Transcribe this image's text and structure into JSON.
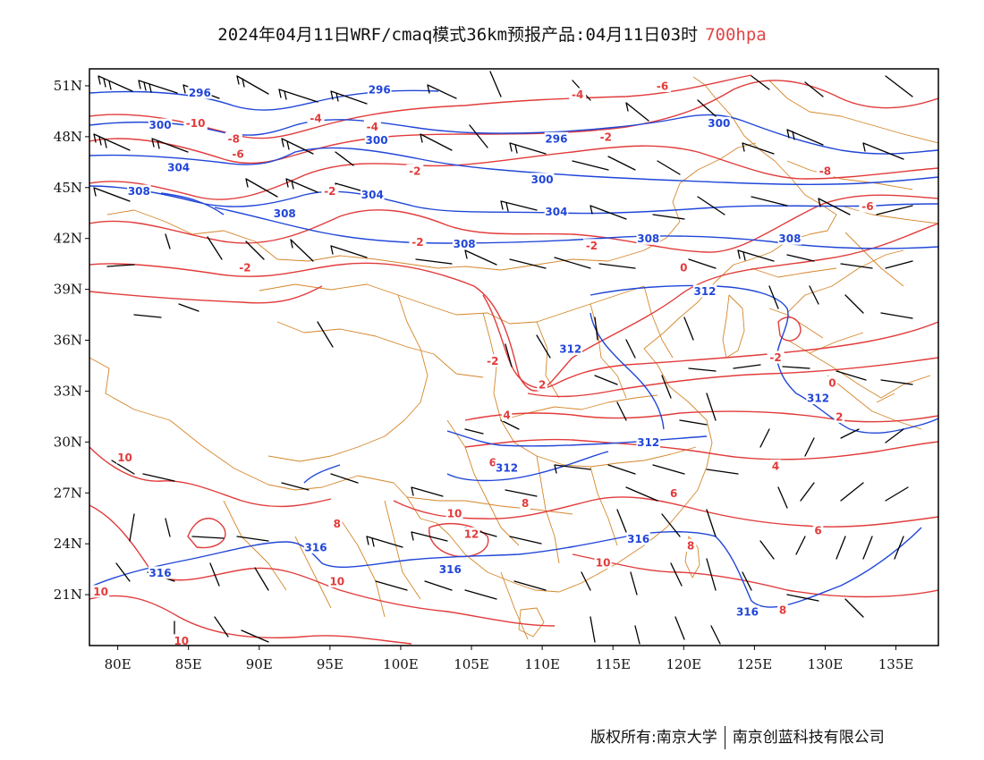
{
  "title": {
    "main": "2024年04月11日WRF/cmaq模式36km预报产品:04月11日03时",
    "level": "700hpa"
  },
  "colors": {
    "temperature": "#e23b3b",
    "height": "#2046d8",
    "borders": "#d4862a",
    "wind": "#000000"
  },
  "map": {
    "lon_range": [
      78,
      138
    ],
    "lat_range": [
      18,
      52
    ],
    "lat_ticks": [
      "21N",
      "24N",
      "27N",
      "30N",
      "33N",
      "36N",
      "39N",
      "42N",
      "45N",
      "48N",
      "51N"
    ],
    "lon_ticks": [
      "80E",
      "85E",
      "90E",
      "95E",
      "100E",
      "105E",
      "110E",
      "115E",
      "120E",
      "125E",
      "130E",
      "135E"
    ]
  },
  "temperature_labels": [
    {
      "text": "-10",
      "lon": 85.5,
      "lat": 48.8
    },
    {
      "text": "-8",
      "lon": 88.2,
      "lat": 47.9
    },
    {
      "text": "-6",
      "lon": 88.5,
      "lat": 47.0
    },
    {
      "text": "-4",
      "lon": 94.0,
      "lat": 49.1
    },
    {
      "text": "-4",
      "lon": 98.0,
      "lat": 48.6
    },
    {
      "text": "-4",
      "lon": 112.5,
      "lat": 50.5
    },
    {
      "text": "-6",
      "lon": 118.5,
      "lat": 51.0
    },
    {
      "text": "-2",
      "lon": 95.0,
      "lat": 44.8
    },
    {
      "text": "-2",
      "lon": 101.0,
      "lat": 46.0
    },
    {
      "text": "-2",
      "lon": 114.5,
      "lat": 48.0
    },
    {
      "text": "-2",
      "lon": 101.2,
      "lat": 41.8
    },
    {
      "text": "-2",
      "lon": 89.0,
      "lat": 40.3
    },
    {
      "text": "-2",
      "lon": 113.5,
      "lat": 41.6
    },
    {
      "text": "-8",
      "lon": 130.0,
      "lat": 46.0
    },
    {
      "text": "-6",
      "lon": 133.0,
      "lat": 43.9
    },
    {
      "text": "0",
      "lon": 120.0,
      "lat": 40.3
    },
    {
      "text": "-2",
      "lon": 106.5,
      "lat": 34.8
    },
    {
      "text": "2",
      "lon": 110.0,
      "lat": 33.4
    },
    {
      "text": "-2",
      "lon": 126.5,
      "lat": 35.0
    },
    {
      "text": "0",
      "lon": 130.5,
      "lat": 33.5
    },
    {
      "text": "2",
      "lon": 131.0,
      "lat": 31.5
    },
    {
      "text": "4",
      "lon": 107.5,
      "lat": 31.6
    },
    {
      "text": "4",
      "lon": 126.5,
      "lat": 28.6
    },
    {
      "text": "10",
      "lon": 80.5,
      "lat": 29.1
    },
    {
      "text": "6",
      "lon": 106.5,
      "lat": 28.8
    },
    {
      "text": "8",
      "lon": 108.8,
      "lat": 26.4
    },
    {
      "text": "10",
      "lon": 103.8,
      "lat": 25.8
    },
    {
      "text": "8",
      "lon": 95.5,
      "lat": 25.2
    },
    {
      "text": "12",
      "lon": 105.0,
      "lat": 24.6
    },
    {
      "text": "6",
      "lon": 119.3,
      "lat": 27.0
    },
    {
      "text": "6",
      "lon": 129.5,
      "lat": 24.8
    },
    {
      "text": "8",
      "lon": 120.5,
      "lat": 23.9
    },
    {
      "text": "10",
      "lon": 114.3,
      "lat": 22.9
    },
    {
      "text": "10",
      "lon": 95.5,
      "lat": 21.8
    },
    {
      "text": "10",
      "lon": 78.8,
      "lat": 21.2
    },
    {
      "text": "10",
      "lon": 84.5,
      "lat": 18.3
    },
    {
      "text": "8",
      "lon": 127.0,
      "lat": 20.1
    }
  ],
  "height_labels": [
    {
      "text": "296",
      "lon": 85.8,
      "lat": 50.6
    },
    {
      "text": "296",
      "lon": 98.5,
      "lat": 50.8
    },
    {
      "text": "296",
      "lon": 111.0,
      "lat": 47.9
    },
    {
      "text": "300",
      "lon": 83.0,
      "lat": 48.7
    },
    {
      "text": "300",
      "lon": 98.3,
      "lat": 47.8
    },
    {
      "text": "300",
      "lon": 110.0,
      "lat": 45.5
    },
    {
      "text": "300",
      "lon": 122.5,
      "lat": 48.8
    },
    {
      "text": "304",
      "lon": 84.3,
      "lat": 46.2
    },
    {
      "text": "304",
      "lon": 98.0,
      "lat": 44.6
    },
    {
      "text": "304",
      "lon": 111.0,
      "lat": 43.6
    },
    {
      "text": "308",
      "lon": 81.5,
      "lat": 44.8
    },
    {
      "text": "308",
      "lon": 91.8,
      "lat": 43.5
    },
    {
      "text": "308",
      "lon": 104.5,
      "lat": 41.7
    },
    {
      "text": "308",
      "lon": 117.5,
      "lat": 42.0
    },
    {
      "text": "308",
      "lon": 127.5,
      "lat": 42.0
    },
    {
      "text": "312",
      "lon": 121.5,
      "lat": 38.9
    },
    {
      "text": "312",
      "lon": 112.0,
      "lat": 35.5
    },
    {
      "text": "312",
      "lon": 129.5,
      "lat": 32.6
    },
    {
      "text": "312",
      "lon": 117.5,
      "lat": 30.0
    },
    {
      "text": "312",
      "lon": 107.5,
      "lat": 28.5
    },
    {
      "text": "316",
      "lon": 94.0,
      "lat": 23.8
    },
    {
      "text": "316",
      "lon": 83.0,
      "lat": 22.3
    },
    {
      "text": "316",
      "lon": 103.5,
      "lat": 22.5
    },
    {
      "text": "316",
      "lon": 116.8,
      "lat": 24.3
    },
    {
      "text": "316",
      "lon": 124.5,
      "lat": 20.0
    }
  ],
  "footer": {
    "left": "版权所有:南京大学",
    "right": "南京创蓝科技有限公司"
  }
}
